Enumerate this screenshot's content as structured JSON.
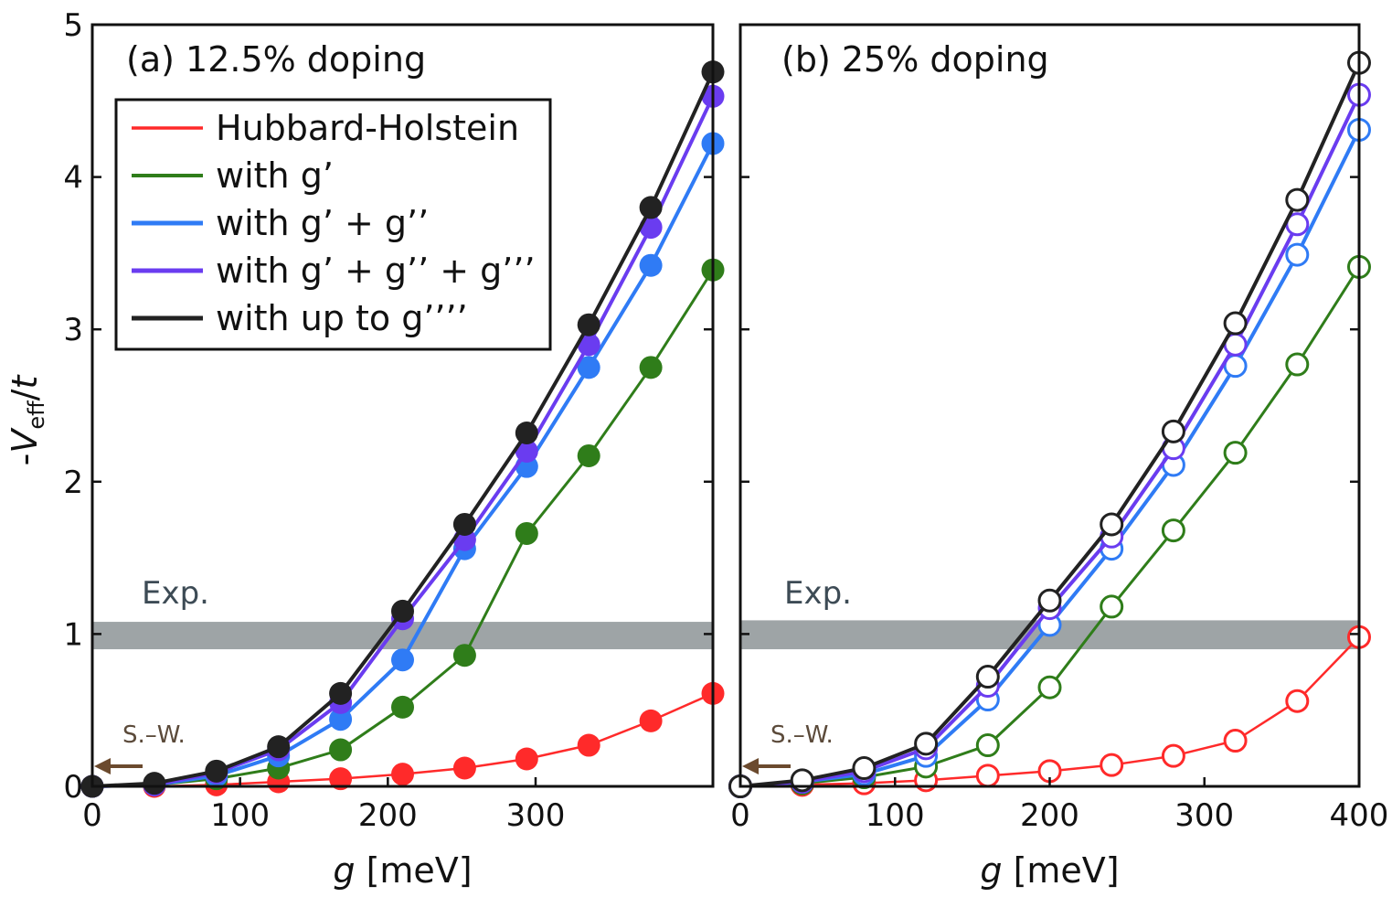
{
  "colors": {
    "hh": "#ff2a2a",
    "g1": "#2f7d1a",
    "g2": "#2f7bf5",
    "g3": "#6a3cf0",
    "g4": "#222222",
    "band": "#9ea4a6",
    "arrow": "#6b4a2e"
  },
  "ylabel_parts": {
    "pre": "-",
    "V": "V",
    "sub": "eff",
    "slash": "/",
    "t": "t"
  },
  "chart_data": [
    {
      "type": "line",
      "title": "(a) 12.5% doping",
      "marker": "filled",
      "xlabel_var": "g",
      "xlabel_unit": " [meV]",
      "xlim": [
        0,
        420
      ],
      "ylim": [
        0,
        5
      ],
      "xticks": [
        0,
        100,
        200,
        300
      ],
      "yticks": [
        0,
        1,
        2,
        3,
        4,
        5
      ],
      "grid": false,
      "legend_position": "top-left",
      "band_label": "Exp.",
      "band_range": [
        0.9,
        1.08
      ],
      "sw_label": "S.–W.",
      "sw_value": 0.0,
      "x": [
        0,
        42,
        84,
        126,
        168,
        210,
        252,
        294,
        336,
        378,
        420
      ],
      "series": [
        {
          "key": "hh",
          "name": "Hubbard-Holstein",
          "values": [
            0,
            0,
            0.01,
            0.03,
            0.05,
            0.08,
            0.12,
            0.18,
            0.27,
            0.43,
            0.61
          ]
        },
        {
          "key": "g1",
          "name": "with g’",
          "values": [
            0,
            0.01,
            0.05,
            0.12,
            0.24,
            0.52,
            0.86,
            1.66,
            2.17,
            2.75,
            3.39
          ]
        },
        {
          "key": "g2",
          "name": "with g’ + g’’",
          "values": [
            0,
            0.01,
            0.07,
            0.2,
            0.44,
            0.83,
            1.56,
            2.1,
            2.75,
            3.42,
            4.22
          ]
        },
        {
          "key": "g3",
          "name": "with g’ + g’’ + g’’’",
          "values": [
            0,
            0.01,
            0.09,
            0.24,
            0.55,
            1.1,
            1.62,
            2.2,
            2.9,
            3.67,
            4.53
          ]
        },
        {
          "key": "g4",
          "name": "with up to g’’’’",
          "values": [
            0,
            0.02,
            0.1,
            0.26,
            0.61,
            1.15,
            1.72,
            2.32,
            3.03,
            3.8,
            4.69
          ]
        }
      ]
    },
    {
      "type": "line",
      "title": "(b) 25% doping",
      "marker": "open",
      "xlabel_var": "g",
      "xlabel_unit": " [meV]",
      "xlim": [
        0,
        400
      ],
      "ylim": [
        0,
        5
      ],
      "xticks": [
        0,
        100,
        200,
        300,
        400
      ],
      "yticks": [
        0,
        1,
        2,
        3,
        4,
        5
      ],
      "grid": false,
      "band_label": "Exp.",
      "band_range": [
        0.9,
        1.09
      ],
      "sw_label": "S.–W.",
      "sw_value": 0.0,
      "x": [
        0,
        40,
        80,
        120,
        160,
        200,
        240,
        280,
        320,
        360,
        400
      ],
      "series": [
        {
          "key": "hh",
          "values": [
            0,
            0.01,
            0.02,
            0.04,
            0.07,
            0.1,
            0.14,
            0.2,
            0.3,
            0.56,
            0.98
          ]
        },
        {
          "key": "g1",
          "values": [
            0,
            0.02,
            0.06,
            0.13,
            0.27,
            0.65,
            1.18,
            1.68,
            2.19,
            2.77,
            3.41
          ]
        },
        {
          "key": "g2",
          "values": [
            0,
            0.03,
            0.08,
            0.2,
            0.57,
            1.06,
            1.56,
            2.11,
            2.76,
            3.49,
            4.31
          ]
        },
        {
          "key": "g3",
          "values": [
            0,
            0.03,
            0.1,
            0.25,
            0.66,
            1.17,
            1.64,
            2.22,
            2.9,
            3.69,
            4.54
          ]
        },
        {
          "key": "g4",
          "values": [
            0,
            0.04,
            0.12,
            0.28,
            0.72,
            1.22,
            1.72,
            2.33,
            3.04,
            3.85,
            4.75
          ]
        }
      ]
    }
  ]
}
